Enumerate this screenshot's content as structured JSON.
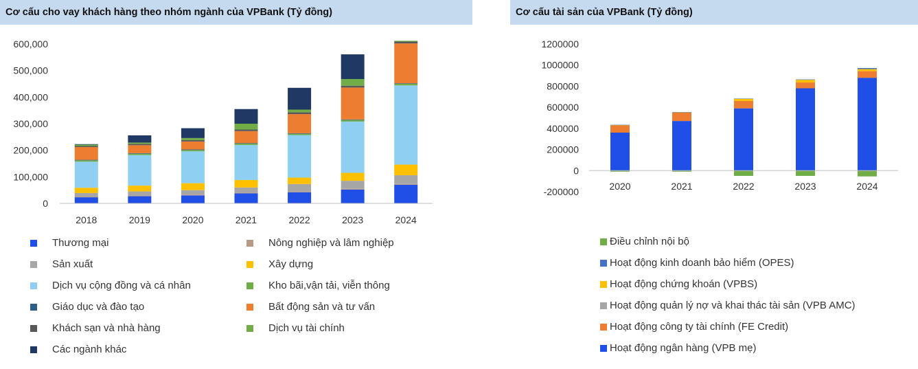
{
  "chart_data": [
    {
      "type": "bar",
      "stacked": true,
      "title": "Cơ cấu cho vay khách hàng theo nhóm ngành của VPBank (Tỷ đồng)",
      "categories": [
        "2018",
        "2019",
        "2020",
        "2021",
        "2022",
        "2023",
        "2024"
      ],
      "y_ticks": [
        "600,000",
        "500,000",
        "400,000",
        "300,000",
        "200,000",
        "100,000",
        "0"
      ],
      "ylim": [
        0,
        600000
      ],
      "legend_position": "bottom",
      "series": [
        {
          "name": "Thương mại",
          "color": "#1f4fe6",
          "values": [
            23000,
            27000,
            30000,
            38000,
            42000,
            52000,
            70000
          ]
        },
        {
          "name": "Nông nghiệp và lâm nghiệp",
          "color": "#b79a86",
          "values": [
            3000,
            3000,
            3000,
            3000,
            3000,
            3000,
            3000
          ]
        },
        {
          "name": "Sản xuất",
          "color": "#a6a6a6",
          "values": [
            13000,
            15000,
            17000,
            19000,
            28000,
            30000,
            33000
          ]
        },
        {
          "name": "Xây dựng",
          "color": "#ffc000",
          "values": [
            20000,
            22000,
            26000,
            28000,
            24000,
            30000,
            40000
          ]
        },
        {
          "name": "Dịch vụ cộng đồng và cá nhân",
          "color": "#8fd0f2",
          "values": [
            98000,
            115000,
            120000,
            132000,
            160000,
            193000,
            298000
          ]
        },
        {
          "name": "Kho bãi,vận tải, viễn thông",
          "color": "#70ad47",
          "values": [
            5000,
            5000,
            5000,
            5000,
            5000,
            6000,
            6000
          ]
        },
        {
          "name": "Giáo dục và đào tạo",
          "color": "#2e5f8a",
          "values": [
            2000,
            2000,
            2000,
            2000,
            2000,
            2000,
            2000
          ]
        },
        {
          "name": "Bất động sản và tư vấn",
          "color": "#ed7d31",
          "values": [
            48000,
            30000,
            30000,
            45000,
            72000,
            120000,
            150000
          ]
        },
        {
          "name": "Khách sạn và nhà hàng",
          "color": "#595959",
          "values": [
            4000,
            5000,
            5000,
            6000,
            7000,
            7000,
            7000
          ]
        },
        {
          "name": "Dịch vụ tài chính",
          "color": "#70ad47",
          "values": [
            5000,
            5000,
            8000,
            22000,
            10000,
            25000,
            3000
          ]
        },
        {
          "name": "Các ngành khác",
          "color": "#203864",
          "values": [
            2000,
            27000,
            37000,
            55000,
            82000,
            93000,
            0
          ]
        }
      ]
    },
    {
      "type": "bar",
      "stacked": true,
      "title": "Cơ cấu tài sản của VPBank (Tỷ đồng)",
      "categories": [
        "2020",
        "2021",
        "2022",
        "2023",
        "2024"
      ],
      "y_ticks": [
        "1200000",
        "1000000",
        "800000",
        "600000",
        "400000",
        "200000",
        "0",
        "-200000"
      ],
      "ylim": [
        -200000,
        1200000
      ],
      "legend_position": "bottom",
      "series": [
        {
          "name": "Hoạt động ngân hàng (VPB mẹ)",
          "color": "#1f4fe6",
          "values": [
            360000,
            470000,
            590000,
            780000,
            880000
          ]
        },
        {
          "name": "Hoạt động công ty tài chính (FE Credit)",
          "color": "#ed7d31",
          "values": [
            70000,
            80000,
            70000,
            55000,
            62000
          ]
        },
        {
          "name": "Hoạt động quản lý nợ và khai thác tài sản (VPB AMC)",
          "color": "#a6a6a6",
          "values": [
            0,
            0,
            0,
            0,
            0
          ]
        },
        {
          "name": "Hoạt động chứng khoán (VPBS)",
          "color": "#ffc000",
          "values": [
            2000,
            3000,
            20000,
            25000,
            20000
          ]
        },
        {
          "name": "Hoạt động kinh doanh bảo hiểm (OPES)",
          "color": "#4472c4",
          "values": [
            2000,
            2000,
            3000,
            4000,
            10000
          ]
        },
        {
          "name": "Điều chỉnh nội bộ",
          "color": "#70ad47",
          "values": [
            -10000,
            -10000,
            -50000,
            -50000,
            -55000
          ]
        }
      ]
    }
  ],
  "legend_left_order": [
    "Thương mại",
    "Nông nghiệp và lâm nghiệp",
    "Sản xuất",
    "Xây dựng",
    "Dịch vụ cộng đồng và cá nhân",
    "Kho bãi,vận tải, viễn thông",
    "Giáo dục và đào tạo",
    "Bất động sản và tư vấn",
    "Khách sạn và nhà hàng",
    "Dịch vụ tài chính",
    "Các ngành khác"
  ],
  "legend_right_order": [
    "Điều chỉnh nội bộ",
    "Hoạt động kinh doanh bảo hiểm (OPES)",
    "Hoạt động chứng khoán (VPBS)",
    "Hoạt động quản lý nợ và khai thác tài sản (VPB AMC)",
    "Hoạt động công ty tài chính (FE Credit)",
    "Hoạt động ngân hàng (VPB mẹ)"
  ]
}
